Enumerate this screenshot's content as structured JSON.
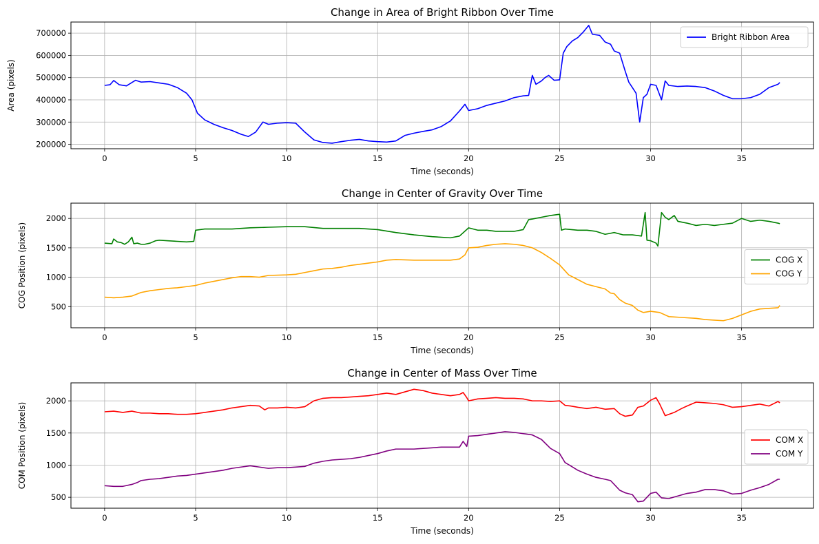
{
  "chart_data": [
    {
      "type": "line",
      "title": "Change in Area of Bright Ribbon Over Time",
      "xlabel": "Time (seconds)",
      "ylabel": "Area (pixels)",
      "xlim": [
        -1.85,
        38.95
      ],
      "ylim": [
        180000,
        750000
      ],
      "xticks": [
        0,
        5,
        10,
        15,
        20,
        25,
        30,
        35
      ],
      "yticks": [
        200000,
        300000,
        400000,
        500000,
        600000,
        700000
      ],
      "grid": true,
      "legend_position": "upper-right",
      "series": [
        {
          "name": "Bright Ribbon Area",
          "color": "#0000ff",
          "x": [
            0,
            0.3,
            0.5,
            0.8,
            1.2,
            1.5,
            1.7,
            2.0,
            2.5,
            3.0,
            3.5,
            4.0,
            4.5,
            4.8,
            5.1,
            5.5,
            6.0,
            6.5,
            7.0,
            7.5,
            7.9,
            8.3,
            8.7,
            9.0,
            9.5,
            10.0,
            10.5,
            11.0,
            11.5,
            12.0,
            12.5,
            13.0,
            13.5,
            14.0,
            14.5,
            15.0,
            15.5,
            16.0,
            16.5,
            17.0,
            17.5,
            18.0,
            18.5,
            19.0,
            19.5,
            19.8,
            20.0,
            20.5,
            21.0,
            21.5,
            22.0,
            22.5,
            23.0,
            23.3,
            23.5,
            23.7,
            24.0,
            24.2,
            24.4,
            24.7,
            25.0,
            25.2,
            25.4,
            25.7,
            26.0,
            26.3,
            26.6,
            26.8,
            27.2,
            27.5,
            27.8,
            28.0,
            28.3,
            28.6,
            28.8,
            29.0,
            29.2,
            29.4,
            29.6,
            29.8,
            30.0,
            30.3,
            30.6,
            30.8,
            31.0,
            31.5,
            32.0,
            32.5,
            33.0,
            33.5,
            34.0,
            34.5,
            35.0,
            35.5,
            36.0,
            36.5,
            37.0,
            37.1
          ],
          "y": [
            465000,
            468000,
            487000,
            468000,
            463000,
            478000,
            488000,
            480000,
            482000,
            476000,
            470000,
            455000,
            430000,
            400000,
            340000,
            310000,
            290000,
            275000,
            262000,
            245000,
            235000,
            255000,
            300000,
            290000,
            295000,
            297000,
            295000,
            255000,
            220000,
            208000,
            205000,
            212000,
            218000,
            222000,
            215000,
            212000,
            210000,
            215000,
            240000,
            250000,
            258000,
            265000,
            280000,
            305000,
            350000,
            380000,
            352000,
            360000,
            375000,
            385000,
            395000,
            410000,
            418000,
            420000,
            510000,
            470000,
            485000,
            500000,
            510000,
            488000,
            490000,
            610000,
            640000,
            665000,
            680000,
            705000,
            735000,
            695000,
            690000,
            660000,
            650000,
            620000,
            610000,
            530000,
            480000,
            455000,
            430000,
            300000,
            410000,
            425000,
            470000,
            465000,
            400000,
            485000,
            465000,
            460000,
            462000,
            460000,
            455000,
            440000,
            420000,
            405000,
            405000,
            410000,
            425000,
            455000,
            470000,
            478000
          ]
        }
      ]
    },
    {
      "type": "line",
      "title": "Change in Center of Gravity Over Time",
      "xlabel": "Time (seconds)",
      "ylabel": "COG Position (pixels)",
      "xlim": [
        -1.85,
        38.95
      ],
      "ylim": [
        140,
        2260
      ],
      "xticks": [
        0,
        5,
        10,
        15,
        20,
        25,
        30,
        35
      ],
      "yticks": [
        500,
        1000,
        1500,
        2000
      ],
      "grid": true,
      "legend_position": "center-right",
      "series": [
        {
          "name": "COG X",
          "color": "#008000",
          "x": [
            0,
            0.4,
            0.5,
            0.7,
            0.9,
            1.1,
            1.3,
            1.5,
            1.6,
            1.8,
            2.0,
            2.2,
            2.5,
            2.8,
            3.0,
            3.5,
            4.0,
            4.5,
            4.9,
            5.0,
            5.5,
            6.0,
            7.0,
            8.0,
            9.0,
            10.0,
            11.0,
            12.0,
            13.0,
            14.0,
            15.0,
            16.0,
            17.0,
            18.0,
            19.0,
            19.5,
            20.0,
            20.5,
            21.0,
            21.5,
            22.0,
            22.5,
            23.0,
            23.3,
            23.5,
            24.0,
            24.5,
            25.0,
            25.1,
            25.3,
            26.0,
            26.5,
            27.0,
            27.5,
            28.0,
            28.5,
            29.0,
            29.5,
            29.7,
            29.8,
            30.0,
            30.3,
            30.4,
            30.6,
            30.8,
            31.0,
            31.3,
            31.5,
            32.0,
            32.5,
            33.0,
            33.5,
            34.0,
            34.5,
            35.0,
            35.5,
            36.0,
            36.5,
            37.0,
            37.1
          ],
          "y": [
            1580,
            1570,
            1650,
            1600,
            1590,
            1560,
            1600,
            1680,
            1570,
            1580,
            1560,
            1560,
            1580,
            1620,
            1630,
            1620,
            1610,
            1600,
            1610,
            1800,
            1820,
            1820,
            1820,
            1840,
            1850,
            1860,
            1860,
            1830,
            1830,
            1830,
            1810,
            1760,
            1720,
            1690,
            1670,
            1700,
            1840,
            1800,
            1800,
            1780,
            1780,
            1780,
            1810,
            1980,
            1990,
            2020,
            2050,
            2070,
            1800,
            1820,
            1800,
            1800,
            1780,
            1730,
            1760,
            1720,
            1720,
            1700,
            2100,
            1630,
            1620,
            1580,
            1530,
            2100,
            2020,
            1980,
            2050,
            1950,
            1920,
            1880,
            1900,
            1880,
            1900,
            1920,
            2000,
            1950,
            1970,
            1950,
            1920,
            1910
          ]
        },
        {
          "name": "COG Y",
          "color": "#ffa500",
          "x": [
            0,
            0.5,
            1.0,
            1.5,
            2.0,
            2.5,
            3.0,
            3.5,
            4.0,
            4.5,
            5.0,
            5.5,
            6.0,
            6.5,
            7.0,
            7.5,
            8.0,
            8.5,
            9.0,
            10.0,
            10.5,
            11.0,
            11.5,
            12.0,
            12.5,
            13.0,
            13.5,
            14.0,
            14.5,
            15.0,
            15.5,
            16.0,
            17.0,
            18.0,
            19.0,
            19.5,
            19.8,
            20.0,
            20.5,
            21.0,
            21.5,
            22.0,
            22.5,
            23.0,
            23.5,
            24.0,
            24.5,
            25.0,
            25.5,
            26.0,
            26.5,
            27.0,
            27.5,
            27.8,
            28.0,
            28.3,
            28.6,
            29.0,
            29.3,
            29.6,
            30.0,
            30.5,
            31.0,
            31.5,
            32.0,
            32.5,
            33.0,
            33.5,
            34.0,
            34.5,
            35.0,
            35.5,
            36.0,
            36.5,
            37.0,
            37.1
          ],
          "y": [
            660,
            650,
            660,
            680,
            740,
            770,
            790,
            810,
            820,
            840,
            860,
            900,
            930,
            960,
            990,
            1010,
            1010,
            1000,
            1030,
            1040,
            1050,
            1080,
            1110,
            1140,
            1150,
            1170,
            1200,
            1220,
            1240,
            1260,
            1290,
            1300,
            1290,
            1290,
            1290,
            1310,
            1380,
            1500,
            1510,
            1540,
            1560,
            1570,
            1560,
            1540,
            1500,
            1420,
            1320,
            1210,
            1040,
            960,
            880,
            840,
            800,
            730,
            720,
            620,
            560,
            520,
            440,
            400,
            420,
            400,
            330,
            320,
            310,
            300,
            280,
            270,
            260,
            300,
            360,
            420,
            460,
            470,
            480,
            520
          ]
        }
      ]
    },
    {
      "type": "line",
      "title": "Change in Center of Mass Over Time",
      "xlabel": "Time (seconds)",
      "ylabel": "COM Position (pixels)",
      "xlim": [
        -1.85,
        38.95
      ],
      "ylim": [
        330,
        2280
      ],
      "xticks": [
        0,
        5,
        10,
        15,
        20,
        25,
        30,
        35
      ],
      "yticks": [
        500,
        1000,
        1500,
        2000
      ],
      "grid": true,
      "legend_position": "center-right",
      "series": [
        {
          "name": "COM X",
          "color": "#ff0000",
          "x": [
            0,
            0.5,
            1.0,
            1.5,
            2.0,
            2.5,
            3.0,
            3.5,
            4.0,
            4.5,
            5.0,
            5.5,
            6.0,
            6.5,
            7.0,
            7.5,
            8.0,
            8.5,
            8.8,
            9.0,
            9.5,
            10.0,
            10.5,
            11.0,
            11.5,
            12.0,
            12.5,
            13.0,
            13.5,
            14.0,
            14.5,
            15.0,
            15.5,
            16.0,
            16.5,
            17.0,
            17.5,
            18.0,
            18.5,
            19.0,
            19.5,
            19.7,
            19.9,
            20.0,
            20.5,
            21.0,
            21.5,
            22.0,
            22.5,
            23.0,
            23.5,
            24.0,
            24.5,
            25.0,
            25.3,
            25.6,
            26.0,
            26.5,
            27.0,
            27.5,
            28.0,
            28.3,
            28.6,
            29.0,
            29.3,
            29.6,
            30.0,
            30.3,
            30.5,
            30.8,
            31.0,
            31.3,
            31.7,
            32.0,
            32.5,
            33.0,
            33.5,
            34.0,
            34.5,
            35.0,
            35.5,
            36.0,
            36.5,
            37.0,
            37.1
          ],
          "y": [
            1830,
            1840,
            1820,
            1840,
            1810,
            1810,
            1800,
            1800,
            1790,
            1790,
            1800,
            1820,
            1840,
            1860,
            1890,
            1910,
            1930,
            1920,
            1860,
            1890,
            1890,
            1900,
            1890,
            1910,
            2000,
            2040,
            2050,
            2050,
            2060,
            2070,
            2080,
            2100,
            2120,
            2100,
            2140,
            2180,
            2160,
            2120,
            2100,
            2080,
            2100,
            2130,
            2050,
            2000,
            2030,
            2040,
            2050,
            2040,
            2040,
            2030,
            2000,
            2000,
            1990,
            2000,
            1930,
            1920,
            1900,
            1880,
            1900,
            1870,
            1880,
            1800,
            1760,
            1780,
            1900,
            1920,
            2010,
            2050,
            1950,
            1770,
            1790,
            1820,
            1880,
            1920,
            1980,
            1970,
            1960,
            1940,
            1900,
            1910,
            1930,
            1950,
            1920,
            1990,
            1970
          ]
        },
        {
          "name": "COM Y",
          "color": "#800080",
          "x": [
            0,
            0.5,
            1.0,
            1.5,
            1.8,
            2.0,
            2.5,
            3.0,
            3.5,
            4.0,
            4.5,
            5.0,
            5.5,
            6.0,
            6.5,
            7.0,
            7.5,
            8.0,
            8.5,
            9.0,
            9.5,
            10.0,
            10.5,
            11.0,
            11.5,
            12.0,
            12.5,
            13.0,
            13.5,
            14.0,
            14.5,
            15.0,
            15.5,
            16.0,
            16.5,
            17.0,
            17.5,
            18.0,
            18.5,
            19.0,
            19.5,
            19.7,
            19.9,
            20.0,
            20.5,
            21.0,
            21.5,
            22.0,
            22.5,
            23.0,
            23.5,
            24.0,
            24.5,
            25.0,
            25.3,
            25.6,
            26.0,
            26.5,
            27.0,
            27.5,
            27.8,
            28.0,
            28.3,
            28.6,
            29.0,
            29.3,
            29.6,
            30.0,
            30.3,
            30.6,
            31.0,
            31.5,
            32.0,
            32.5,
            33.0,
            33.5,
            34.0,
            34.5,
            35.0,
            35.5,
            36.0,
            36.5,
            37.0,
            37.1
          ],
          "y": [
            680,
            670,
            670,
            700,
            730,
            760,
            780,
            790,
            810,
            830,
            840,
            860,
            880,
            900,
            920,
            950,
            970,
            990,
            970,
            950,
            960,
            960,
            970,
            980,
            1030,
            1060,
            1080,
            1090,
            1100,
            1120,
            1150,
            1180,
            1220,
            1250,
            1250,
            1250,
            1260,
            1270,
            1280,
            1280,
            1280,
            1370,
            1290,
            1450,
            1460,
            1480,
            1500,
            1520,
            1510,
            1490,
            1470,
            1400,
            1260,
            1180,
            1040,
            990,
            920,
            860,
            810,
            780,
            760,
            700,
            610,
            570,
            540,
            430,
            440,
            560,
            580,
            490,
            480,
            520,
            560,
            580,
            620,
            620,
            600,
            550,
            560,
            610,
            650,
            700,
            780,
            780
          ]
        }
      ]
    }
  ]
}
